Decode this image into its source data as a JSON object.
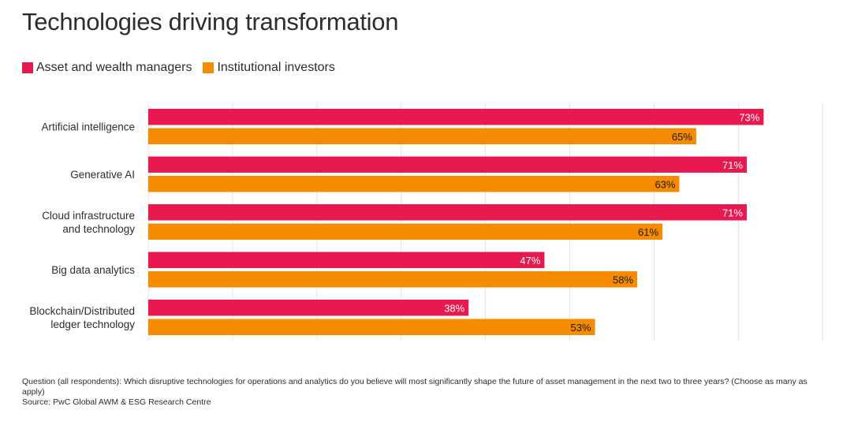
{
  "chart_data": {
    "type": "bar",
    "orientation": "horizontal",
    "title": "Technologies driving transformation",
    "categories": [
      "Artificial intelligence",
      "Generative AI",
      "Cloud infrastructure and technology",
      "Big data analytics",
      "Blockchain/Distributed ledger technology"
    ],
    "category_lines": [
      [
        "Artificial intelligence"
      ],
      [
        "Generative AI"
      ],
      [
        "Cloud infrastructure",
        "and technology"
      ],
      [
        "Big data analytics"
      ],
      [
        "Blockchain/Distributed",
        "ledger technology"
      ]
    ],
    "series": [
      {
        "name": "Asset and wealth managers",
        "color": "#e8194f",
        "label_color": "#ffffff",
        "values": [
          73,
          71,
          71,
          47,
          38
        ]
      },
      {
        "name": "Institutional investors",
        "color": "#f78b00",
        "label_color": "#1a1a1a",
        "values": [
          65,
          63,
          61,
          58,
          53
        ]
      }
    ],
    "value_suffix": "%",
    "xlim": [
      0,
      80
    ],
    "grid": true,
    "legend_position": "top-left",
    "xlabel": "",
    "ylabel": ""
  },
  "footer": {
    "question": "Question (all respondents): Which disruptive technologies for operations and analytics do you believe will most significantly shape the future of asset management in the next two to three years? (Choose as many as apply)",
    "source": "Source: PwC Global AWM & ESG Research Centre"
  }
}
